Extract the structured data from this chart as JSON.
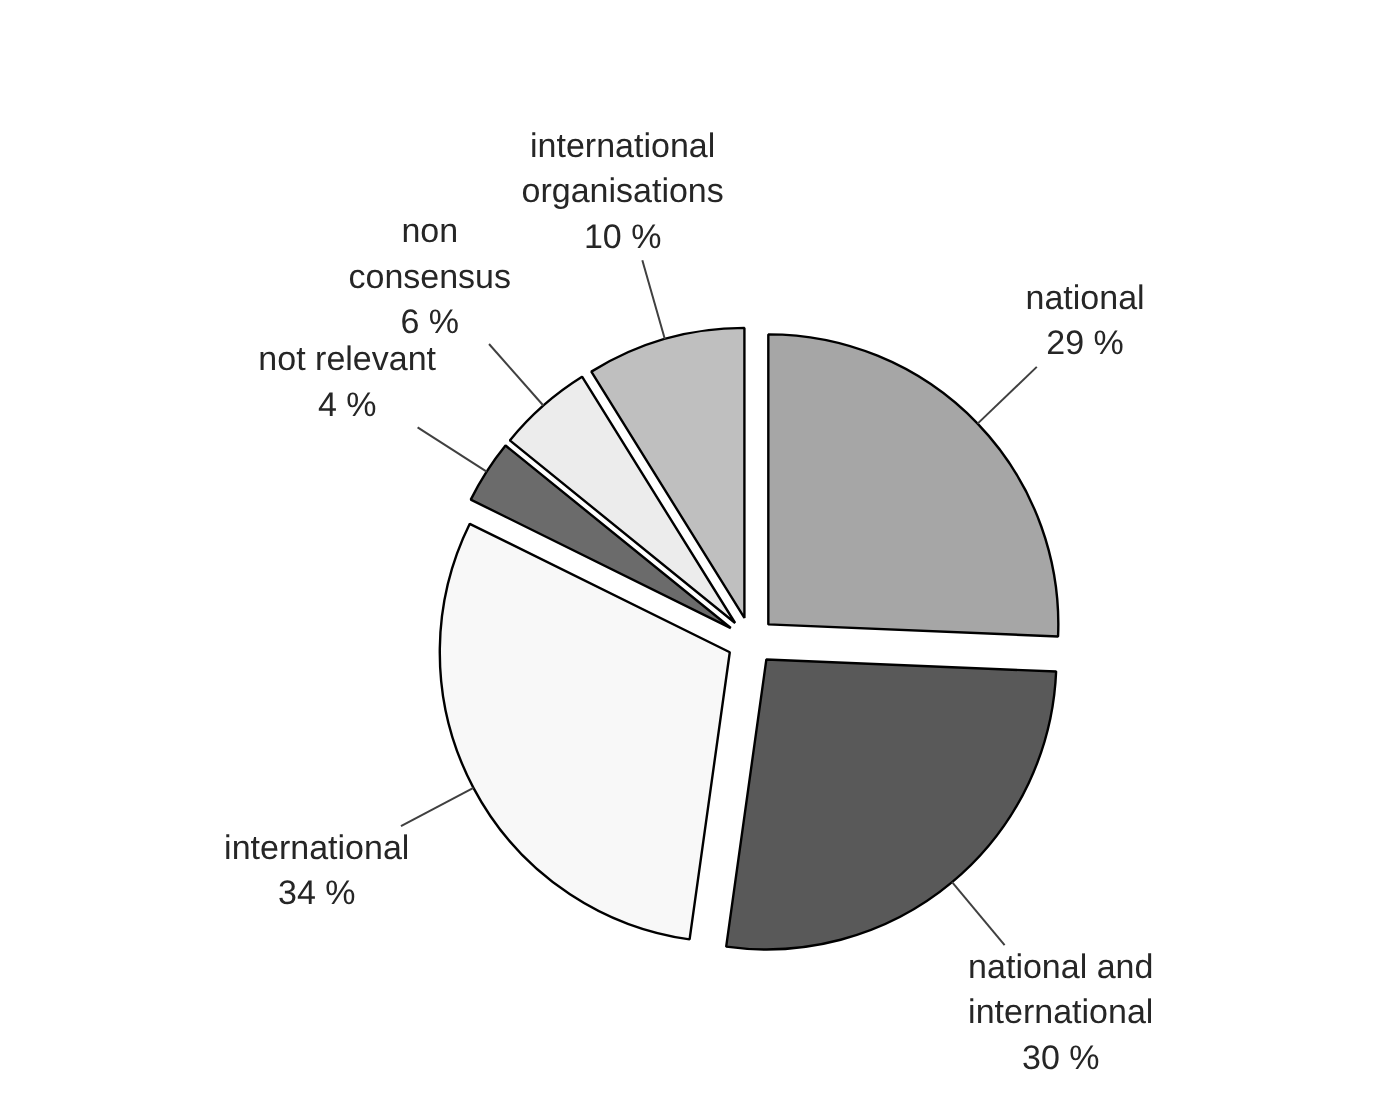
{
  "chart_data": {
    "type": "pie",
    "categories": [
      "national",
      "national and\ninternational",
      "international",
      "not relevant",
      "non\nconsensus",
      "international\norganisations"
    ],
    "values": [
      29,
      30,
      34,
      4,
      6,
      10
    ],
    "value_labels": [
      "29 %",
      "30 %",
      "34 %",
      "4 %",
      "6 %",
      "10 %"
    ],
    "colors": [
      "#a6a6a6",
      "#595959",
      "#f8f8f8",
      "#6b6b6b",
      "#ececec",
      "#bfbfbf"
    ]
  }
}
